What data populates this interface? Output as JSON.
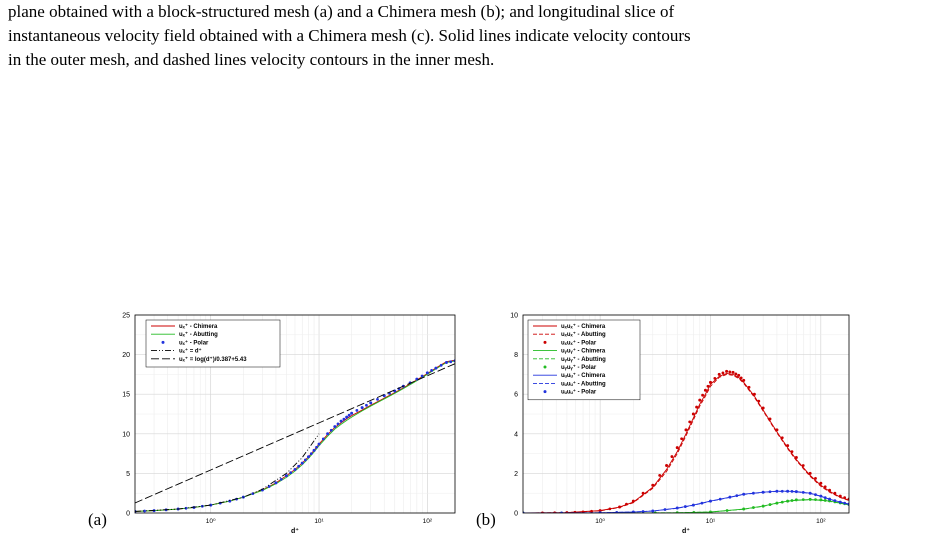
{
  "caption_lines": [
    "plane obtained with a block-structured mesh (a) and a Chimera mesh (b); and longitudinal slice of",
    "instantaneous velocity field obtained with a Chimera mesh (c). Solid lines indicate velocity contours",
    "in the outer mesh, and dashed lines velocity contours in the inner mesh."
  ],
  "panels": [
    {
      "label": "(a)"
    },
    {
      "label": "(b)"
    }
  ],
  "chart_data": [
    {
      "type": "line",
      "xlabel": "d⁺",
      "x_scale": "log",
      "xlim": [
        0.2,
        180
      ],
      "ylim": [
        0,
        25
      ],
      "y_ticks": [
        "0",
        "5",
        "10",
        "15",
        "20",
        "25"
      ],
      "x_ticks": [
        {
          "value": 1,
          "label": "10⁰"
        },
        {
          "value": 10,
          "label": "10¹"
        },
        {
          "value": 100,
          "label": "10²"
        }
      ],
      "grid": true,
      "legend_position": "top-left",
      "series": [
        {
          "name": "uₓ⁺ - Chimera",
          "color": "#cc0000",
          "style": "solid",
          "x": [
            0.2,
            0.3,
            0.5,
            0.7,
            1,
            1.5,
            2,
            3,
            4,
            5,
            6,
            7,
            8,
            9,
            10,
            12,
            14,
            16,
            18,
            20,
            25,
            30,
            40,
            50,
            60,
            80,
            100,
            120,
            150,
            180
          ],
          "y": [
            0.2,
            0.3,
            0.5,
            0.7,
            1,
            1.5,
            2,
            2.9,
            3.8,
            4.7,
            5.5,
            6.3,
            7.1,
            7.9,
            8.7,
            9.9,
            10.8,
            11.4,
            11.9,
            12.3,
            13.0,
            13.6,
            14.5,
            15.2,
            15.8,
            16.8,
            17.6,
            18.3,
            19.1,
            19.3
          ]
        },
        {
          "name": "uₓ⁺ - Abutting",
          "color": "#22bb22",
          "style": "solid",
          "x": [
            0.2,
            0.3,
            0.5,
            0.7,
            1,
            1.5,
            2,
            3,
            4,
            5,
            6,
            7,
            8,
            9,
            10,
            12,
            14,
            16,
            18,
            20,
            25,
            30,
            40,
            50,
            60,
            80,
            100,
            120,
            150,
            180
          ],
          "y": [
            0.2,
            0.3,
            0.5,
            0.7,
            1,
            1.5,
            2,
            2.85,
            3.7,
            4.5,
            5.3,
            6.1,
            6.9,
            7.7,
            8.5,
            9.7,
            10.6,
            11.2,
            11.7,
            12.1,
            12.9,
            13.5,
            14.4,
            15.1,
            15.7,
            16.7,
            17.5,
            18.2,
            19.0,
            19.2
          ]
        },
        {
          "name": "uₓ⁺ - Polar",
          "color": "#2233dd",
          "style": "dots",
          "x": [
            0.2,
            0.3,
            0.5,
            0.7,
            1,
            1.5,
            2,
            3,
            4,
            5,
            6,
            7,
            8,
            9,
            10,
            12,
            14,
            16,
            18,
            20,
            25,
            30,
            40,
            50,
            60,
            80,
            100,
            120,
            150,
            180
          ],
          "y": [
            0.2,
            0.3,
            0.5,
            0.7,
            1,
            1.5,
            2,
            2.9,
            3.8,
            4.7,
            5.5,
            6.3,
            7.1,
            7.9,
            8.7,
            10.0,
            10.9,
            11.6,
            12.1,
            12.6,
            13.3,
            13.9,
            14.8,
            15.4,
            16.0,
            16.9,
            17.7,
            18.3,
            19.0,
            19.2
          ]
        },
        {
          "name": "uₓ⁺ = d⁺",
          "color": "#000000",
          "style": "dashdotdot",
          "x": [
            0.2,
            0.5,
            1,
            2,
            3,
            5,
            7,
            10
          ],
          "y": [
            0.2,
            0.5,
            1,
            2,
            3,
            5,
            7,
            10
          ]
        },
        {
          "name": "uₓ⁺ = log(d⁺)/0.387+5.43",
          "color": "#000000",
          "style": "longdash",
          "x": [
            0.2,
            0.5,
            1,
            2,
            5,
            10,
            20,
            50,
            100,
            180
          ],
          "y": [
            1.27,
            3.64,
            5.43,
            7.22,
            9.59,
            11.38,
            13.17,
            15.54,
            17.33,
            18.85
          ]
        }
      ]
    },
    {
      "type": "line",
      "xlabel": "d⁺",
      "x_scale": "log",
      "xlim": [
        0.2,
        180
      ],
      "ylim": [
        0,
        10
      ],
      "y_ticks": [
        "0",
        "2",
        "4",
        "6",
        "8",
        "10"
      ],
      "x_ticks": [
        {
          "value": 1,
          "label": "10⁰"
        },
        {
          "value": 10,
          "label": "10¹"
        },
        {
          "value": 100,
          "label": "10²"
        }
      ],
      "grid": true,
      "legend_position": "top-left",
      "series": [
        {
          "name": "uₓuₓ⁺ - Chimera",
          "color": "#cc0000",
          "style": "solid",
          "x": [
            0.2,
            0.5,
            1,
            1.5,
            2,
            3,
            4,
            5,
            6,
            7,
            8,
            9,
            10,
            12,
            14,
            16,
            18,
            20,
            25,
            30,
            40,
            50,
            60,
            80,
            100,
            120,
            150,
            180
          ],
          "y": [
            0.0,
            0.02,
            0.12,
            0.3,
            0.55,
            1.3,
            2.2,
            3.1,
            4.0,
            4.8,
            5.5,
            6.0,
            6.5,
            6.9,
            7.05,
            7.0,
            6.85,
            6.6,
            5.9,
            5.2,
            4.1,
            3.3,
            2.7,
            1.9,
            1.4,
            1.1,
            0.8,
            0.65
          ]
        },
        {
          "name": "uₓuₓ⁺ - Abutting",
          "color": "#cc0000",
          "style": "dashed",
          "x": [
            0.2,
            0.5,
            1,
            1.5,
            2,
            3,
            4,
            5,
            6,
            7,
            8,
            9,
            10,
            12,
            14,
            16,
            18,
            20,
            25,
            30,
            40,
            50,
            60,
            80,
            100,
            120,
            150,
            180
          ],
          "y": [
            0.0,
            0.02,
            0.11,
            0.28,
            0.52,
            1.25,
            2.1,
            3.0,
            3.9,
            4.7,
            5.4,
            5.9,
            6.4,
            6.85,
            7.0,
            6.95,
            6.8,
            6.55,
            5.85,
            5.15,
            4.05,
            3.25,
            2.65,
            1.85,
            1.35,
            1.05,
            0.78,
            0.63
          ]
        },
        {
          "name": "uₓuₓ⁺ - Polar",
          "color": "#cc0000",
          "style": "dots",
          "x": [
            0.3,
            0.5,
            0.7,
            1,
            1.5,
            2,
            3,
            4,
            5,
            6,
            7,
            8,
            9,
            10,
            12,
            14,
            16,
            18,
            20,
            25,
            30,
            40,
            50,
            60,
            80,
            100,
            120,
            150,
            180
          ],
          "y": [
            0.0,
            0.02,
            0.05,
            0.12,
            0.3,
            0.6,
            1.4,
            2.4,
            3.3,
            4.2,
            5.0,
            5.7,
            6.2,
            6.6,
            7.0,
            7.15,
            7.1,
            6.95,
            6.7,
            6.0,
            5.3,
            4.2,
            3.4,
            2.8,
            2.0,
            1.5,
            1.15,
            0.85,
            0.7
          ]
        },
        {
          "name": "uᵧuᵧ⁺ - Chimera",
          "color": "#22bb22",
          "style": "solid",
          "x": [
            0.2,
            1,
            2,
            5,
            10,
            20,
            30,
            40,
            50,
            60,
            80,
            100,
            120,
            150,
            180
          ],
          "y": [
            0.0,
            0.0,
            0.0,
            0.01,
            0.05,
            0.2,
            0.35,
            0.5,
            0.6,
            0.65,
            0.68,
            0.65,
            0.6,
            0.5,
            0.42
          ]
        },
        {
          "name": "uᵧuᵧ⁺ - Abutting",
          "color": "#22bb22",
          "style": "dashed",
          "x": [
            0.2,
            1,
            2,
            5,
            10,
            20,
            30,
            40,
            50,
            60,
            80,
            100,
            120,
            150,
            180
          ],
          "y": [
            0.0,
            0.0,
            0.0,
            0.01,
            0.05,
            0.19,
            0.34,
            0.49,
            0.59,
            0.64,
            0.67,
            0.64,
            0.59,
            0.49,
            0.41
          ]
        },
        {
          "name": "uᵧuᵧ⁺ - Polar",
          "color": "#22bb22",
          "style": "dots",
          "x": [
            0.2,
            1,
            2,
            5,
            10,
            20,
            30,
            40,
            50,
            60,
            80,
            100,
            120,
            150,
            180
          ],
          "y": [
            0.0,
            0.0,
            0.0,
            0.01,
            0.05,
            0.2,
            0.35,
            0.5,
            0.6,
            0.66,
            0.69,
            0.66,
            0.61,
            0.51,
            0.43
          ]
        },
        {
          "name": "uᵤuᵤ⁺ - Chimera",
          "color": "#2233dd",
          "style": "solid",
          "x": [
            0.2,
            1,
            2,
            3,
            5,
            7,
            10,
            15,
            20,
            30,
            40,
            50,
            60,
            80,
            100,
            120,
            150,
            180
          ],
          "y": [
            0.0,
            0.01,
            0.05,
            0.1,
            0.25,
            0.4,
            0.6,
            0.8,
            0.95,
            1.05,
            1.1,
            1.1,
            1.08,
            1.0,
            0.85,
            0.7,
            0.55,
            0.45
          ]
        },
        {
          "name": "uᵤuᵤ⁺ - Abutting",
          "color": "#2233dd",
          "style": "dashed",
          "x": [
            0.2,
            1,
            2,
            3,
            5,
            7,
            10,
            15,
            20,
            30,
            40,
            50,
            60,
            80,
            100,
            120,
            150,
            180
          ],
          "y": [
            0.0,
            0.01,
            0.05,
            0.1,
            0.24,
            0.39,
            0.59,
            0.79,
            0.94,
            1.04,
            1.09,
            1.09,
            1.07,
            0.99,
            0.84,
            0.69,
            0.54,
            0.44
          ]
        },
        {
          "name": "uᵤuᵤ⁺ - Polar",
          "color": "#2233dd",
          "style": "dots",
          "x": [
            0.2,
            1,
            2,
            3,
            5,
            7,
            10,
            15,
            20,
            30,
            40,
            50,
            60,
            80,
            100,
            120,
            150,
            180
          ],
          "y": [
            0.0,
            0.01,
            0.05,
            0.1,
            0.25,
            0.4,
            0.6,
            0.8,
            0.95,
            1.05,
            1.1,
            1.1,
            1.08,
            1.0,
            0.85,
            0.7,
            0.55,
            0.45
          ]
        }
      ]
    }
  ]
}
